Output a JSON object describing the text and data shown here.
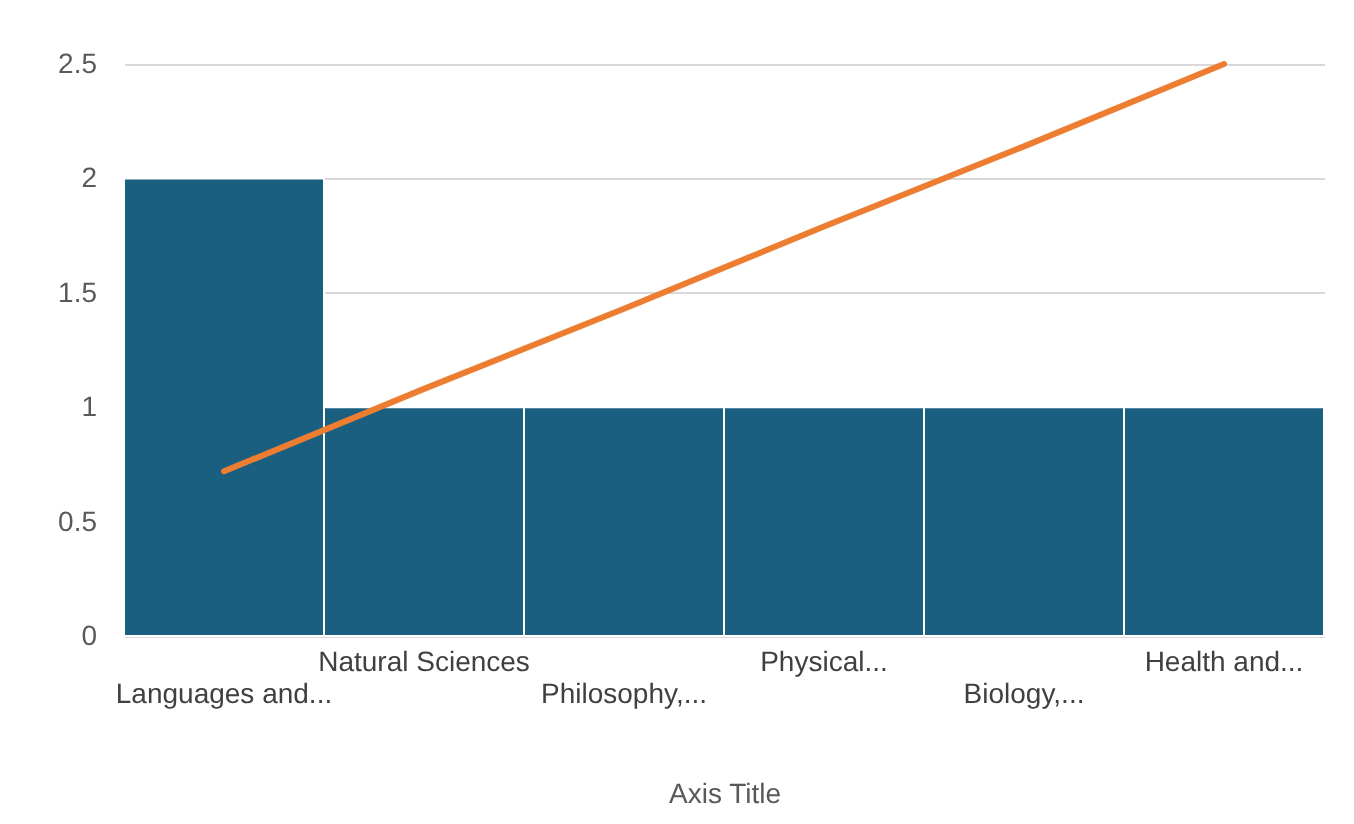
{
  "chart_data": {
    "type": "bar",
    "xlabel": "Axis Title",
    "categories": [
      "Languages and...",
      "Natural Sciences",
      "Philosophy,...",
      "Physical...",
      "Biology,...",
      "Health and..."
    ],
    "series": [
      {
        "type": "bar",
        "color": "#1a5e80",
        "values": [
          2,
          1,
          1,
          1,
          1,
          1
        ]
      },
      {
        "type": "line",
        "color": "#ed7d31",
        "values": [
          0.72,
          1.08,
          1.43,
          1.79,
          2.14,
          2.5
        ]
      }
    ],
    "ylim": [
      0,
      2.5
    ],
    "yticks": [
      0,
      0.5,
      1,
      1.5,
      2,
      2.5
    ],
    "grid": "y",
    "marker": "none",
    "line_style": "solid"
  }
}
